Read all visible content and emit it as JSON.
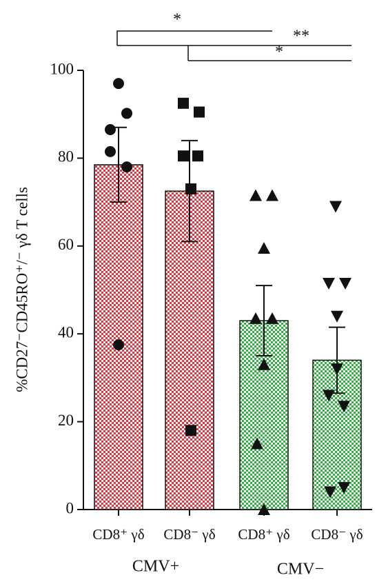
{
  "chart_data": {
    "type": "bar",
    "ylabel": "%CD27⁻CD45RO⁺/⁻ γδ T cells",
    "categories": [
      "CD8⁺ γδ",
      "CD8⁻ γδ",
      "CD8⁺ γδ",
      "CD8⁻ γδ"
    ],
    "groups": [
      "CMV+",
      "CMV−"
    ],
    "values": [
      78.5,
      72.5,
      43,
      34
    ],
    "errors": [
      8.5,
      11.5,
      8,
      7.5
    ],
    "colors": [
      "#e8323c",
      "#e8323c",
      "#30b040",
      "#30b040"
    ],
    "markers": [
      "circle",
      "square",
      "triangle-up",
      "triangle-down"
    ],
    "points": [
      [
        97,
        90.2,
        86.5,
        81.5,
        78,
        37.5
      ],
      [
        92.5,
        90.5,
        80.5,
        80.5,
        73,
        18
      ],
      [
        71.5,
        71.5,
        59.5,
        43.5,
        43.5,
        33,
        15,
        0
      ],
      [
        69,
        51.5,
        51.5,
        44,
        32,
        26,
        23.5,
        4,
        5
      ]
    ],
    "significance": [
      "*",
      "**",
      "*"
    ],
    "ylim": [
      0,
      100
    ],
    "yticks": [
      0,
      20,
      40,
      60,
      80,
      100
    ]
  }
}
